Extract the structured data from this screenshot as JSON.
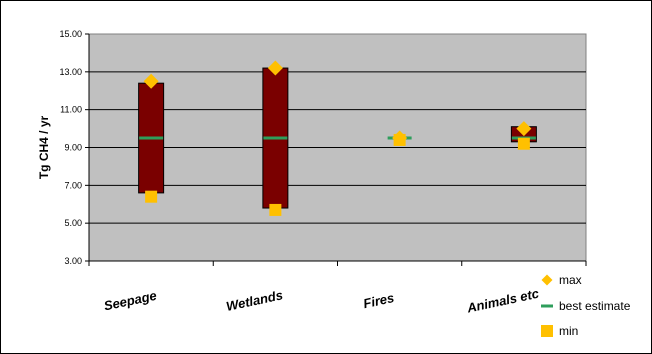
{
  "chart_data": {
    "type": "bar",
    "title": "",
    "xlabel": "",
    "ylabel": "Tg CH4 / yr",
    "ylim": [
      3,
      15
    ],
    "yticks": [
      "3.00",
      "5.00",
      "7.00",
      "9.00",
      "11.00",
      "13.00",
      "15.00"
    ],
    "grid": true,
    "legend_position": "bottom-right",
    "categories": [
      "Seepage",
      "Wetlands",
      "Fires",
      "Animals etc"
    ],
    "range_bars": [
      {
        "low": 6.6,
        "high": 12.4
      },
      {
        "low": 5.8,
        "high": 13.2
      },
      {
        "low": 9.4,
        "high": 9.4
      },
      {
        "low": 9.3,
        "high": 10.1
      }
    ],
    "series": [
      {
        "name": "max",
        "marker": "diamond",
        "color": "#FFC000",
        "values": [
          12.5,
          13.2,
          9.5,
          10.0
        ]
      },
      {
        "name": "best estimate",
        "marker": "dash",
        "color": "#2E9E5B",
        "values": [
          9.5,
          9.5,
          9.5,
          9.5
        ]
      },
      {
        "name": "min",
        "marker": "square",
        "color": "#FFC000",
        "values": [
          6.4,
          5.7,
          9.4,
          9.2
        ]
      }
    ],
    "colors": {
      "plot_bg": "#C0C0C0",
      "bar": "#7A0000",
      "bar_edge": "#000000",
      "marker": "#FFC000",
      "best": "#2E9E5B",
      "grid": "#000000"
    }
  }
}
